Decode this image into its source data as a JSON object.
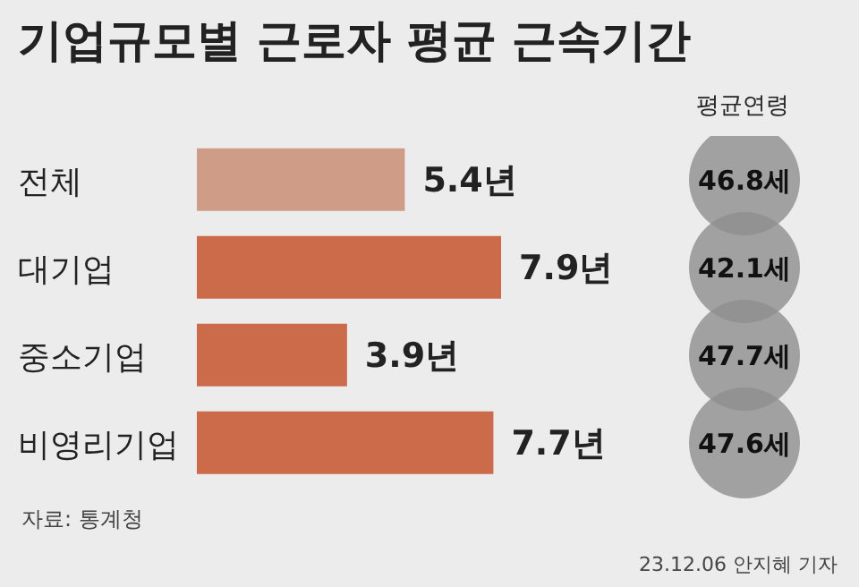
{
  "chart_data": {
    "type": "bar",
    "orientation": "horizontal",
    "title": "기업규모별 근로자 평균 근속기간",
    "categories": [
      "전체",
      "대기업",
      "중소기업",
      "비영리기업"
    ],
    "tick_labels": "y",
    "colors": [
      "#cf9c88",
      "#cc6b4a",
      "#cc6b4a",
      "#cc6b4a"
    ],
    "values": [
      5.4,
      7.9,
      3.9,
      7.7
    ],
    "value_labels": [
      "5.4년",
      "7.9년",
      "3.9년",
      "7.7년"
    ],
    "annotations": [
      "평균연령",
      "46.8세",
      "42.1세",
      "47.7세",
      "47.6세",
      "자료: 통계청",
      "23.12.06 안지혜 기자"
    ]
  }
}
